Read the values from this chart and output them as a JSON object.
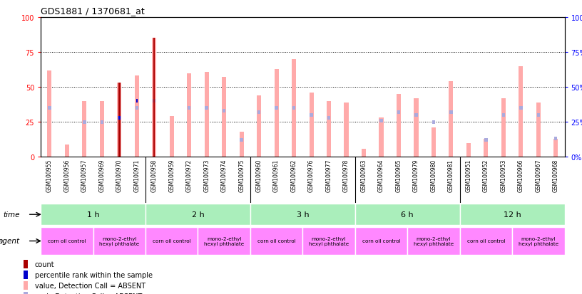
{
  "title": "GDS1881 / 1370681_at",
  "samples": [
    "GSM100955",
    "GSM100956",
    "GSM100957",
    "GSM100969",
    "GSM100970",
    "GSM100971",
    "GSM100958",
    "GSM100959",
    "GSM100972",
    "GSM100973",
    "GSM100974",
    "GSM100975",
    "GSM100960",
    "GSM100961",
    "GSM100962",
    "GSM100976",
    "GSM100977",
    "GSM100978",
    "GSM100963",
    "GSM100964",
    "GSM100965",
    "GSM100979",
    "GSM100980",
    "GSM100981",
    "GSM100951",
    "GSM100952",
    "GSM100953",
    "GSM100966",
    "GSM100967",
    "GSM100968"
  ],
  "pink_bars": [
    62,
    9,
    40,
    40,
    53,
    58,
    85,
    29,
    60,
    61,
    57,
    18,
    44,
    63,
    70,
    46,
    40,
    39,
    6,
    28,
    45,
    42,
    21,
    54,
    10,
    13,
    42,
    65,
    39,
    13
  ],
  "light_blue_bars": [
    35,
    0,
    25,
    25,
    28,
    35,
    40,
    0,
    35,
    35,
    33,
    12,
    32,
    35,
    35,
    30,
    28,
    0,
    0,
    26,
    32,
    30,
    25,
    32,
    0,
    12,
    30,
    35,
    30,
    13
  ],
  "red_bars": [
    0,
    0,
    0,
    0,
    53,
    0,
    85,
    0,
    0,
    0,
    0,
    0,
    0,
    0,
    0,
    0,
    0,
    0,
    0,
    0,
    0,
    0,
    0,
    0,
    0,
    0,
    0,
    0,
    0,
    0
  ],
  "blue_bars": [
    0,
    0,
    0,
    0,
    28,
    40,
    0,
    0,
    0,
    0,
    0,
    0,
    0,
    0,
    0,
    0,
    0,
    0,
    0,
    0,
    0,
    0,
    0,
    0,
    0,
    0,
    0,
    0,
    0,
    0
  ],
  "time_groups": [
    {
      "label": "1 h",
      "start": 0,
      "end": 6
    },
    {
      "label": "2 h",
      "start": 6,
      "end": 12
    },
    {
      "label": "3 h",
      "start": 12,
      "end": 18
    },
    {
      "label": "6 h",
      "start": 18,
      "end": 24
    },
    {
      "label": "12 h",
      "start": 24,
      "end": 30
    }
  ],
  "agent_groups": [
    {
      "label": "corn oil control",
      "start": 0,
      "end": 3
    },
    {
      "label": "mono-2-ethyl\nhexyl phthalate",
      "start": 3,
      "end": 6
    },
    {
      "label": "corn oil control",
      "start": 6,
      "end": 9
    },
    {
      "label": "mono-2-ethyl\nhexyl phthalate",
      "start": 9,
      "end": 12
    },
    {
      "label": "corn oil control",
      "start": 12,
      "end": 15
    },
    {
      "label": "mono-2-ethyl\nhexyl phthalate",
      "start": 15,
      "end": 18
    },
    {
      "label": "corn oil control",
      "start": 18,
      "end": 21
    },
    {
      "label": "mono-2-ethyl\nhexyl phthalate",
      "start": 21,
      "end": 24
    },
    {
      "label": "corn oil control",
      "start": 24,
      "end": 27
    },
    {
      "label": "mono-2-ethyl\nhexyl phthalate",
      "start": 27,
      "end": 30
    }
  ],
  "ylim": [
    0,
    100
  ],
  "yticks": [
    0,
    25,
    50,
    75,
    100
  ],
  "pink_color": "#ffaaaa",
  "light_blue_color": "#aaaadd",
  "red_color": "#aa0000",
  "blue_color": "#0000cc",
  "time_bg_color": "#aaeebb",
  "agent_bg_color": "#ff88ff",
  "label_row_bg": "#cccccc",
  "chart_bg": "#ffffff"
}
